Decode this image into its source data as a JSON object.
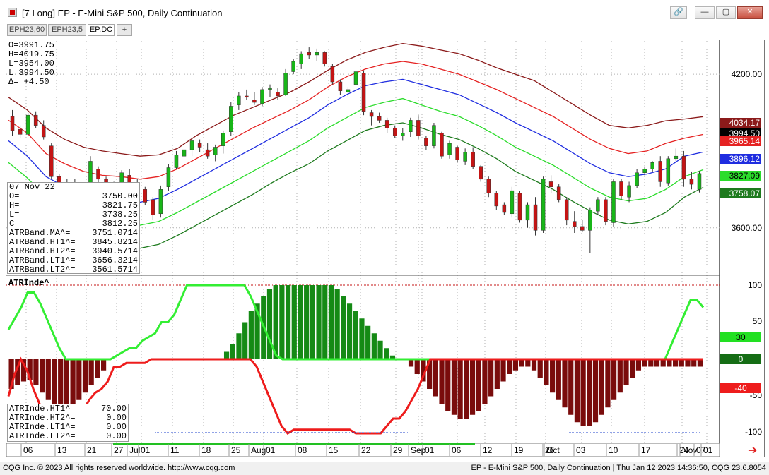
{
  "window": {
    "title": "[7 Long]  EP - E-Mini S&P 500, Daily Continuation",
    "buttons": {
      "link": "🔗",
      "minimize": "—",
      "maximize": "▢",
      "close": "✕"
    }
  },
  "tabs": [
    {
      "label": "EPH23,60",
      "active": false
    },
    {
      "label": "EPH23,5",
      "active": false
    },
    {
      "label": "EP,DC",
      "active": true
    },
    {
      "label": "+",
      "active": false
    }
  ],
  "ohlc": {
    "open": "O=3991.75",
    "high": "H=4019.75",
    "low": "L=3954.00",
    "last": "L=3994.50",
    "delta": "Δ=   +4.50"
  },
  "cursor_info": {
    "date": "07 Nov 22",
    "rows": [
      {
        "label": "O=",
        "value": "3750.00"
      },
      {
        "label": "H=",
        "value": "3821.75"
      },
      {
        "label": "L=",
        "value": "3738.25"
      },
      {
        "label": "C=",
        "value": "3812.25"
      },
      {
        "label": "ATRBand.MA^=",
        "value": "3751.0714"
      },
      {
        "label": "ATRBand.HT1^=",
        "value": "3845.8214"
      },
      {
        "label": "ATRBand.HT2^=",
        "value": "3940.5714"
      },
      {
        "label": "ATRBand.LT1^=",
        "value": "3656.3214"
      },
      {
        "label": "ATRBand.LT2^=",
        "value": "3561.5714"
      }
    ]
  },
  "lower_title": "ATRInde^",
  "lower_info": [
    {
      "label": "ATRInde.HT1^=",
      "value": "70.00"
    },
    {
      "label": "ATRInde.HT2^=",
      "value": "0.00"
    },
    {
      "label": "ATRInde.LT1^=",
      "value": "0.00"
    },
    {
      "label": "ATRInde.LT2^=",
      "value": "0.00"
    }
  ],
  "price_axis": {
    "ticks": [
      "4200.00",
      "3600.00"
    ]
  },
  "price_tags": [
    {
      "text": "4034.17",
      "bg": "#8b1a1a",
      "fg": "#ffffff"
    },
    {
      "text": "3994.50",
      "bg": "#000000",
      "fg": "#ffffff"
    },
    {
      "text": "3965.14",
      "bg": "#e52222",
      "fg": "#ffffff"
    },
    {
      "text": "3896.12",
      "bg": "#1f2de0",
      "fg": "#ffffff"
    },
    {
      "text": "3827.09",
      "bg": "#2bdc2b",
      "fg": "#000000"
    },
    {
      "text": "3758.07",
      "bg": "#1d7a1d",
      "fg": "#ffffff"
    }
  ],
  "lower_axis": {
    "ticks": [
      "100",
      "50",
      "-50",
      "-100"
    ]
  },
  "lower_tags": [
    {
      "text": "30",
      "bg": "#22e022",
      "fg": "#000000"
    },
    {
      "text": "0",
      "bg": "#156d15",
      "fg": "#ffffff"
    },
    {
      "text": "-40",
      "bg": "#ee1c1c",
      "fg": "#ffffff"
    }
  ],
  "time_axis": [
    "06",
    "13",
    "21",
    "27",
    "Jul",
    "01",
    "11",
    "18",
    "25",
    "Aug",
    "01",
    "08",
    "15",
    "22",
    "29",
    "Sep",
    "01",
    "06",
    "12",
    "19",
    "26",
    "Oct",
    "03",
    "10",
    "17",
    "24",
    "Nov",
    "01",
    "07"
  ],
  "colors": {
    "up": "#18b618",
    "down": "#c41414",
    "ht2": "#8b1a1a",
    "ht1": "#e52222",
    "ma": "#1f2de0",
    "lt1": "#2bdc2b",
    "lt2": "#1d7a1d",
    "hist_up": "#158a15",
    "hist_down": "#7a0c0c",
    "line_up": "#33ee33",
    "line_down": "#ee1c1c"
  },
  "chart_data": {
    "type": "candlestick",
    "ylim": [
      3420,
      4330
    ],
    "series_candles": [
      [
        4035,
        4060,
        3960,
        3980
      ],
      [
        3985,
        4000,
        3950,
        3965
      ],
      [
        3965,
        4050,
        3960,
        4040
      ],
      [
        4040,
        4055,
        3990,
        4000
      ],
      [
        4000,
        4020,
        3945,
        3955
      ],
      [
        3920,
        3930,
        3790,
        3800
      ],
      [
        3800,
        3810,
        3720,
        3730
      ],
      [
        3740,
        3790,
        3690,
        3770
      ],
      [
        3770,
        3790,
        3690,
        3705
      ],
      [
        3710,
        3720,
        3635,
        3650
      ],
      [
        3650,
        3880,
        3640,
        3860
      ],
      [
        3830,
        3840,
        3775,
        3790
      ],
      [
        3790,
        3800,
        3740,
        3755
      ],
      [
        3755,
        3780,
        3710,
        3765
      ],
      [
        3775,
        3825,
        3760,
        3815
      ],
      [
        3805,
        3830,
        3760,
        3770
      ],
      [
        3775,
        3790,
        3730,
        3745
      ],
      [
        3750,
        3760,
        3690,
        3700
      ],
      [
        3710,
        3720,
        3630,
        3650
      ],
      [
        3655,
        3765,
        3640,
        3750
      ],
      [
        3760,
        3850,
        3745,
        3835
      ],
      [
        3835,
        3900,
        3830,
        3885
      ],
      [
        3880,
        3920,
        3860,
        3905
      ],
      [
        3905,
        3950,
        3880,
        3940
      ],
      [
        3930,
        3945,
        3895,
        3915
      ],
      [
        3905,
        3930,
        3870,
        3880
      ],
      [
        3885,
        3925,
        3860,
        3915
      ],
      [
        3920,
        3980,
        3890,
        3970
      ],
      [
        3975,
        4090,
        3960,
        4075
      ],
      [
        4080,
        4130,
        4060,
        4115
      ],
      [
        4115,
        4140,
        4100,
        4110
      ],
      [
        4100,
        4130,
        4080,
        4090
      ],
      [
        4085,
        4150,
        4075,
        4140
      ],
      [
        4140,
        4160,
        4110,
        4145
      ],
      [
        4130,
        4145,
        4100,
        4115
      ],
      [
        4120,
        4220,
        4115,
        4205
      ],
      [
        4210,
        4260,
        4200,
        4250
      ],
      [
        4240,
        4290,
        4220,
        4280
      ],
      [
        4285,
        4305,
        4260,
        4275
      ],
      [
        4275,
        4300,
        4250,
        4285
      ],
      [
        4285,
        4290,
        4230,
        4240
      ],
      [
        4230,
        4240,
        4160,
        4170
      ],
      [
        4170,
        4180,
        4120,
        4135
      ],
      [
        4130,
        4150,
        4110,
        4140
      ],
      [
        4160,
        4220,
        4150,
        4210
      ],
      [
        4205,
        4215,
        4040,
        4055
      ],
      [
        4050,
        4060,
        4000,
        4035
      ],
      [
        4035,
        4050,
        4010,
        4020
      ],
      [
        4020,
        4030,
        3970,
        3990
      ],
      [
        3990,
        4000,
        3950,
        3960
      ],
      [
        3960,
        3990,
        3940,
        3970
      ],
      [
        3975,
        4030,
        3955,
        4020
      ],
      [
        4020,
        4040,
        3945,
        3960
      ],
      [
        3950,
        3960,
        3905,
        3920
      ],
      [
        3920,
        4010,
        3910,
        4000
      ],
      [
        3970,
        3975,
        3870,
        3880
      ],
      [
        3885,
        3940,
        3870,
        3930
      ],
      [
        3915,
        3920,
        3855,
        3865
      ],
      [
        3860,
        3910,
        3845,
        3895
      ],
      [
        3895,
        3915,
        3830,
        3840
      ],
      [
        3840,
        3845,
        3780,
        3790
      ],
      [
        3790,
        3800,
        3720,
        3735
      ],
      [
        3735,
        3745,
        3670,
        3685
      ],
      [
        3690,
        3700,
        3650,
        3660
      ],
      [
        3655,
        3760,
        3640,
        3745
      ],
      [
        3735,
        3745,
        3620,
        3630
      ],
      [
        3630,
        3700,
        3600,
        3690
      ],
      [
        3690,
        3720,
        3570,
        3590
      ],
      [
        3590,
        3800,
        3580,
        3790
      ],
      [
        3780,
        3805,
        3735,
        3760
      ],
      [
        3760,
        3770,
        3700,
        3710
      ],
      [
        3710,
        3720,
        3610,
        3630
      ],
      [
        3625,
        3665,
        3580,
        3605
      ],
      [
        3605,
        3630,
        3585,
        3590
      ],
      [
        3590,
        3680,
        3500,
        3670
      ],
      [
        3665,
        3720,
        3650,
        3710
      ],
      [
        3710,
        3720,
        3610,
        3625
      ],
      [
        3620,
        3790,
        3605,
        3780
      ],
      [
        3780,
        3790,
        3710,
        3725
      ],
      [
        3720,
        3780,
        3700,
        3765
      ],
      [
        3765,
        3830,
        3755,
        3815
      ],
      [
        3815,
        3840,
        3805,
        3830
      ],
      [
        3830,
        3860,
        3820,
        3855
      ],
      [
        3860,
        3880,
        3760,
        3780
      ],
      [
        3775,
        3880,
        3765,
        3870
      ],
      [
        3870,
        3910,
        3860,
        3880
      ],
      [
        3880,
        3900,
        3760,
        3790
      ],
      [
        3790,
        3820,
        3750,
        3770
      ],
      [
        3750,
        3822,
        3738,
        3812
      ]
    ],
    "ht2": [
      4110,
      4060,
      3990,
      3945,
      3915,
      3900,
      3890,
      3880,
      3885,
      3910,
      3960,
      4000,
      4040,
      4070,
      4100,
      4130,
      4170,
      4215,
      4255,
      4285,
      4305,
      4320,
      4310,
      4295,
      4280,
      4255,
      4225,
      4200,
      4175,
      4130,
      4085,
      4040,
      4000,
      3990,
      4000,
      4018,
      4025,
      4034
    ],
    "ht1": [
      4020,
      3970,
      3890,
      3850,
      3820,
      3805,
      3800,
      3790,
      3800,
      3830,
      3870,
      3910,
      3950,
      3990,
      4025,
      4060,
      4100,
      4150,
      4190,
      4220,
      4240,
      4250,
      4240,
      4220,
      4200,
      4170,
      4140,
      4105,
      4070,
      4035,
      3990,
      3945,
      3910,
      3890,
      3900,
      3930,
      3950,
      3965
    ],
    "ma": [
      3940,
      3880,
      3800,
      3760,
      3730,
      3715,
      3705,
      3700,
      3715,
      3750,
      3790,
      3830,
      3870,
      3910,
      3950,
      3990,
      4030,
      4080,
      4120,
      4155,
      4170,
      4180,
      4160,
      4140,
      4120,
      4085,
      4050,
      4010,
      3975,
      3940,
      3895,
      3850,
      3815,
      3800,
      3810,
      3830,
      3880,
      3896
    ],
    "lt1": [
      3855,
      3795,
      3720,
      3670,
      3640,
      3625,
      3615,
      3610,
      3625,
      3660,
      3700,
      3740,
      3780,
      3820,
      3860,
      3900,
      3940,
      3990,
      4030,
      4070,
      4090,
      4105,
      4080,
      4055,
      4035,
      4000,
      3960,
      3915,
      3880,
      3845,
      3800,
      3755,
      3720,
      3705,
      3715,
      3750,
      3800,
      3827
    ],
    "lt2": [
      3770,
      3710,
      3630,
      3585,
      3550,
      3535,
      3525,
      3520,
      3535,
      3570,
      3610,
      3650,
      3690,
      3730,
      3775,
      3815,
      3850,
      3900,
      3940,
      3980,
      4000,
      4010,
      3990,
      3965,
      3945,
      3910,
      3870,
      3820,
      3785,
      3750,
      3705,
      3665,
      3630,
      3615,
      3625,
      3660,
      3720,
      3758
    ],
    "osc_hist": [
      -40,
      -35,
      -30,
      -28,
      -35,
      -45,
      -55,
      -65,
      -70,
      -70,
      -65,
      -55,
      -45,
      -35,
      -25,
      -15,
      0,
      0,
      0,
      0,
      0,
      0,
      0,
      0,
      0,
      0,
      0,
      0,
      0,
      0,
      0,
      0,
      0,
      0,
      0,
      10,
      20,
      35,
      50,
      65,
      75,
      85,
      95,
      100,
      100,
      100,
      100,
      100,
      100,
      100,
      100,
      100,
      100,
      95,
      85,
      75,
      65,
      55,
      45,
      35,
      25,
      15,
      5,
      0,
      0,
      -10,
      -20,
      -30,
      -40,
      -50,
      -60,
      -70,
      -75,
      -80,
      -80,
      -75,
      -70,
      -60,
      -50,
      -40,
      -30,
      -20,
      -15,
      -10,
      -10,
      -15,
      -25,
      -35,
      -45,
      -55,
      -65,
      -75,
      -85,
      -90,
      -90,
      -85,
      -75,
      -65,
      -55,
      -45,
      -35,
      -25,
      -15,
      -10,
      -10,
      -10,
      -10,
      -10,
      -10,
      -10,
      -10,
      -10,
      -10
    ],
    "osc_up": [
      40,
      55,
      70,
      90,
      90,
      75,
      55,
      35,
      15,
      0,
      0,
      0,
      0,
      0,
      0,
      0,
      0,
      5,
      10,
      15,
      15,
      25,
      30,
      35,
      50,
      50,
      60,
      80,
      100,
      100,
      100,
      100,
      100,
      100,
      100,
      100,
      100,
      100,
      85,
      65,
      45,
      25,
      5,
      0,
      0,
      0,
      0,
      0,
      0,
      0,
      0,
      0,
      0,
      0,
      0,
      0,
      0,
      0,
      0,
      0,
      0,
      0,
      0,
      0,
      0,
      0,
      0,
      0,
      0,
      0,
      0,
      0,
      0,
      0,
      0,
      0,
      0,
      0,
      0,
      0,
      0,
      0,
      0,
      0,
      0,
      0,
      0,
      0,
      0,
      0,
      0,
      0,
      0,
      0,
      0,
      0,
      0,
      0,
      0,
      0,
      0,
      0,
      0,
      0,
      20,
      40,
      60,
      80,
      80,
      70
    ],
    "osc_down": [
      -50,
      -20,
      0,
      -15,
      -40,
      -60,
      -80,
      -85,
      -90,
      -90,
      -90,
      -85,
      -70,
      -55,
      -45,
      -40,
      -30,
      -10,
      -10,
      -5,
      -5,
      -5,
      -5,
      0,
      0,
      0,
      0,
      0,
      0,
      0,
      0,
      0,
      0,
      0,
      0,
      0,
      0,
      0,
      0,
      0,
      -10,
      -30,
      -50,
      -70,
      -90,
      -100,
      -95,
      -95,
      -95,
      -95,
      -95,
      -95,
      -95,
      -95,
      -95,
      -95,
      -100,
      -100,
      -100,
      -100,
      -100,
      -90,
      -80,
      -80,
      -70,
      -55,
      -40,
      -20,
      0,
      0,
      0,
      0,
      0,
      0,
      0,
      0,
      0,
      0,
      0,
      0,
      0,
      0,
      0,
      0,
      0,
      0,
      0,
      0,
      0,
      0,
      0,
      0,
      0,
      0,
      0,
      0,
      0,
      0,
      0,
      0,
      0,
      0,
      0,
      0,
      0,
      0,
      0,
      0,
      0,
      0,
      0,
      0,
      0
    ]
  }
}
